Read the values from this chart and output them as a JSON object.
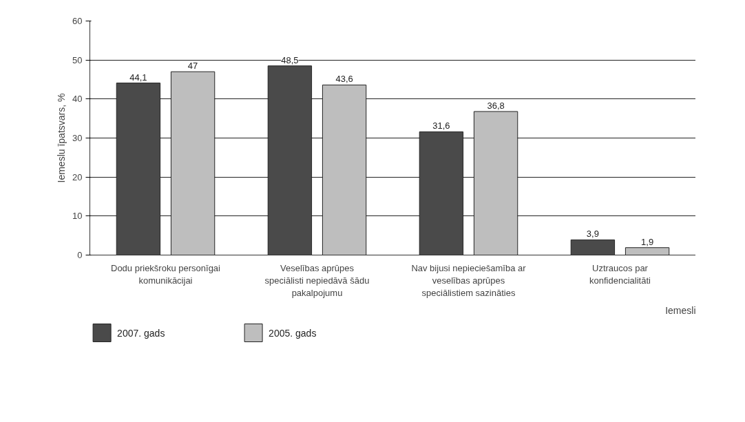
{
  "chart_data": {
    "type": "bar",
    "xlabel": "Iemesli",
    "ylabel": "Iemeslu īpatsvars, %",
    "categories": [
      "Dodu priekšroku personīgai komunikācijai",
      "Veselības aprūpes speciālisti nepiedāvā šādu pakalpojumu",
      "Nav bijusi nepieciešamība ar veselības aprūpes speciālistiem sazināties",
      "Uztraucos par konfidencialitāti"
    ],
    "series": [
      {
        "name": "2007. gads",
        "color": "#4a4a4a",
        "values": [
          44.1,
          48.5,
          31.6,
          3.9
        ],
        "value_labels": [
          "44,1",
          "48,5",
          "31,6",
          "3,9"
        ]
      },
      {
        "name": "2005. gads",
        "color": "#bebebe",
        "values": [
          47,
          43.6,
          36.8,
          1.9
        ],
        "value_labels": [
          "47",
          "43,6",
          "36,8",
          "1,9"
        ]
      }
    ],
    "ylim": [
      0,
      60
    ],
    "yticks": [
      0,
      10,
      20,
      30,
      40,
      50,
      60
    ],
    "grid": "y",
    "legend": "bottom left"
  }
}
